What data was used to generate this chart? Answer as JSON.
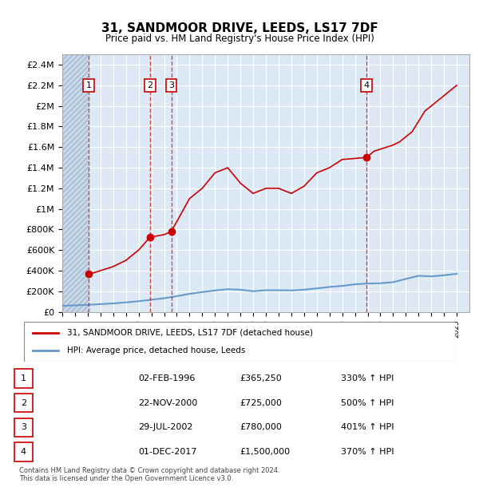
{
  "title": "31, SANDMOOR DRIVE, LEEDS, LS17 7DF",
  "subtitle": "Price paid vs. HM Land Registry's House Price Index (HPI)",
  "ylabel": "",
  "ylim": [
    0,
    2500000
  ],
  "yticks": [
    0,
    200000,
    400000,
    600000,
    800000,
    1000000,
    1200000,
    1400000,
    1600000,
    1800000,
    2000000,
    2200000,
    2400000
  ],
  "ytick_labels": [
    "£0",
    "£200K",
    "£400K",
    "£600K",
    "£800K",
    "£1M",
    "£1.2M",
    "£1.4M",
    "£1.6M",
    "£1.8M",
    "£2M",
    "£2.2M",
    "£2.4M"
  ],
  "xlim_start": 1994,
  "xlim_end": 2026,
  "background_color": "#dce9f5",
  "hatch_color": "#b0c8e0",
  "grid_color": "#ffffff",
  "sale_dates": [
    1996.08,
    2000.9,
    2002.57,
    2017.92
  ],
  "sale_prices": [
    365250,
    725000,
    780000,
    1500000
  ],
  "sale_labels": [
    "1",
    "2",
    "3",
    "4"
  ],
  "hpi_years": [
    1994,
    1995,
    1996,
    1997,
    1998,
    1999,
    2000,
    2001,
    2002,
    2003,
    2004,
    2005,
    2006,
    2007,
    2008,
    2009,
    2010,
    2011,
    2012,
    2013,
    2014,
    2015,
    2016,
    2017,
    2018,
    2019,
    2020,
    2021,
    2022,
    2023,
    2024,
    2025
  ],
  "hpi_values": [
    58000,
    63000,
    68000,
    75000,
    82000,
    92000,
    103000,
    118000,
    132000,
    152000,
    175000,
    192000,
    208000,
    220000,
    215000,
    200000,
    210000,
    210000,
    208000,
    215000,
    228000,
    242000,
    252000,
    268000,
    275000,
    278000,
    288000,
    320000,
    350000,
    345000,
    355000,
    370000
  ],
  "red_line_color": "#cc0000",
  "blue_line_color": "#6699cc",
  "legend_label_red": "31, SANDMOOR DRIVE, LEEDS, LS17 7DF (detached house)",
  "legend_label_blue": "HPI: Average price, detached house, Leeds",
  "table_data": [
    [
      "1",
      "02-FEB-1996",
      "£365,250",
      "330% ↑ HPI"
    ],
    [
      "2",
      "22-NOV-2000",
      "£725,000",
      "500% ↑ HPI"
    ],
    [
      "3",
      "29-JUL-2002",
      "£780,000",
      "401% ↑ HPI"
    ],
    [
      "4",
      "01-DEC-2017",
      "£1,500,000",
      "370% ↑ HPI"
    ]
  ],
  "footer": "Contains HM Land Registry data © Crown copyright and database right 2024.\nThis data is licensed under the Open Government Licence v3.0.",
  "price_line_data_x": [
    1996.08,
    1997.0,
    1998.0,
    1999.0,
    2000.0,
    2000.9,
    2000.9,
    2002.0,
    2002.57,
    2002.57,
    2004.0,
    2005.0,
    2006.0,
    2007.0,
    2008.0,
    2009.0,
    2010.0,
    2011.0,
    2012.0,
    2013.0,
    2014.0,
    2015.0,
    2016.0,
    2017.0,
    2017.92,
    2017.92,
    2018.5,
    2019.0,
    2019.5,
    2020.0,
    2020.5,
    2021.0,
    2021.5,
    2022.0,
    2022.5,
    2023.0,
    2023.5,
    2024.0,
    2024.5,
    2025.0
  ],
  "price_line_data_y": [
    365250,
    400000,
    440000,
    500000,
    600000,
    725000,
    725000,
    750000,
    780000,
    780000,
    1100000,
    1200000,
    1350000,
    1400000,
    1250000,
    1150000,
    1200000,
    1200000,
    1150000,
    1220000,
    1350000,
    1400000,
    1480000,
    1490000,
    1500000,
    1500000,
    1560000,
    1580000,
    1600000,
    1620000,
    1650000,
    1700000,
    1750000,
    1850000,
    1950000,
    2000000,
    2050000,
    2100000,
    2150000,
    2200000
  ]
}
